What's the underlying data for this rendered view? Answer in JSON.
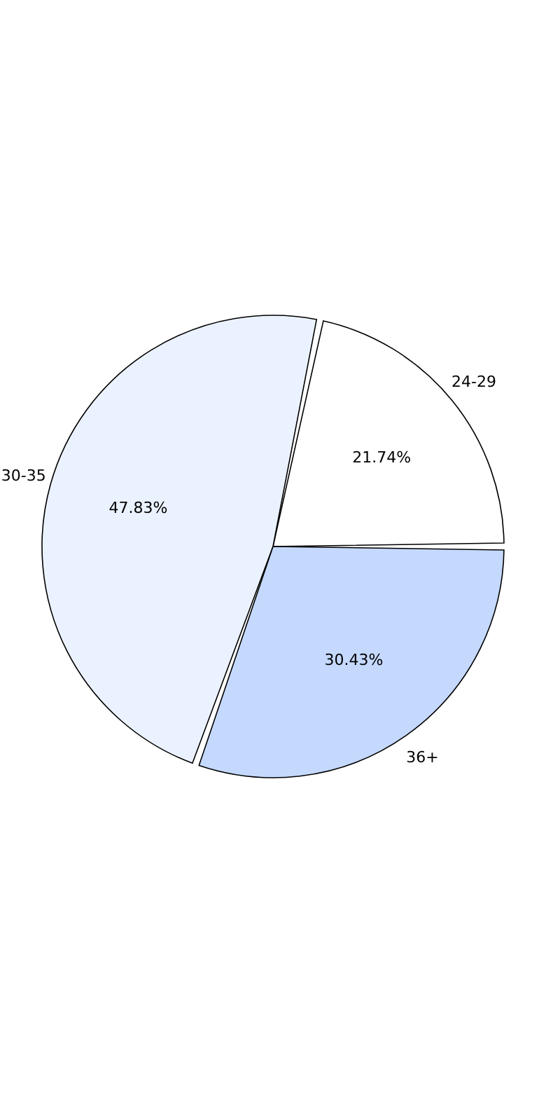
{
  "chart_data": {
    "type": "pie",
    "categories": [
      "24-29",
      "30-35",
      "36+"
    ],
    "values": [
      21.74,
      47.83,
      30.43
    ],
    "colors": [
      "#ffffff",
      "#ebf2ff",
      "#c5d9ff"
    ],
    "value_labels": [
      "21.74%",
      "47.83%",
      "30.43%"
    ]
  }
}
